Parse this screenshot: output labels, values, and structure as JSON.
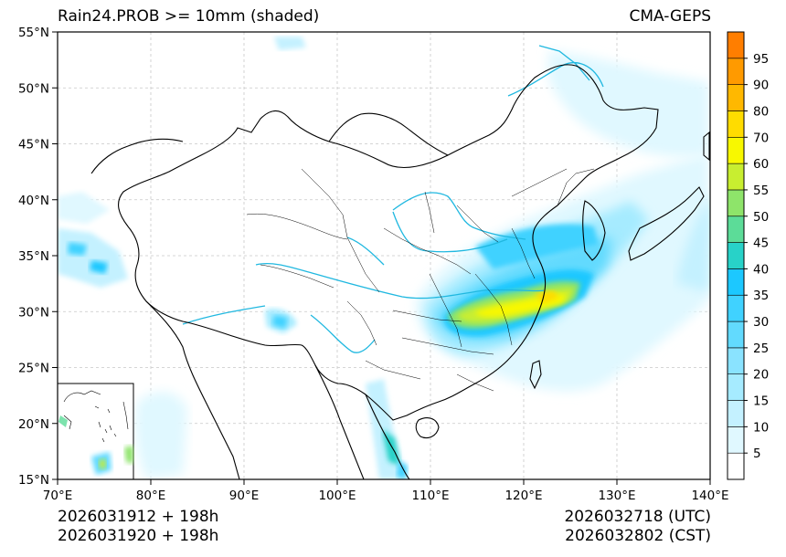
{
  "title_left": "Rain24.PROB >= 10mm (shaded)",
  "title_right": "CMA-GEPS",
  "footer": {
    "init_utc": "2026031912 + 198h",
    "init_cst": "2026031920 + 198h",
    "valid_utc": "2026032718 (UTC)",
    "valid_cst": "2026032802 (CST)"
  },
  "lat_ticks": [
    "55°N",
    "50°N",
    "45°N",
    "40°N",
    "35°N",
    "30°N",
    "25°N",
    "20°N",
    "15°N"
  ],
  "lon_ticks": [
    "70°E",
    "80°E",
    "90°E",
    "100°E",
    "110°E",
    "120°E",
    "130°E",
    "140°E"
  ],
  "colorbar": {
    "labels": [
      "5",
      "10",
      "15",
      "20",
      "25",
      "30",
      "35",
      "40",
      "45",
      "50",
      "55",
      "60",
      "70",
      "80",
      "90",
      "95"
    ],
    "colors": [
      "#ffffff",
      "#e0f8ff",
      "#c4f1ff",
      "#a6ebff",
      "#8ae3ff",
      "#62dafe",
      "#40d2ff",
      "#1cc8ff",
      "#28d2c8",
      "#5cdc98",
      "#8ee46a",
      "#c8ee30",
      "#f8f800",
      "#ffdc00",
      "#ffb800",
      "#ff9a00",
      "#ff7e00"
    ]
  },
  "colors": {
    "rivers": "#20b8e0",
    "border": "#000000",
    "grid": "#c8c8c8"
  }
}
